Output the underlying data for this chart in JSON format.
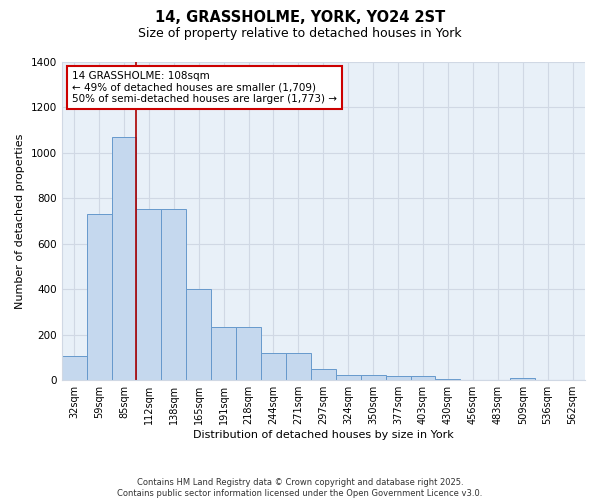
{
  "title_line1": "14, GRASSHOLME, YORK, YO24 2ST",
  "title_line2": "Size of property relative to detached houses in York",
  "xlabel": "Distribution of detached houses by size in York",
  "ylabel": "Number of detached properties",
  "categories": [
    "32sqm",
    "59sqm",
    "85sqm",
    "112sqm",
    "138sqm",
    "165sqm",
    "191sqm",
    "218sqm",
    "244sqm",
    "271sqm",
    "297sqm",
    "324sqm",
    "350sqm",
    "377sqm",
    "403sqm",
    "430sqm",
    "456sqm",
    "483sqm",
    "509sqm",
    "536sqm",
    "562sqm"
  ],
  "values": [
    108,
    730,
    1070,
    750,
    750,
    400,
    235,
    235,
    120,
    120,
    50,
    25,
    25,
    20,
    18,
    5,
    0,
    0,
    10,
    0,
    0
  ],
  "bar_color": "#c5d8ee",
  "bar_edge_color": "#6699cc",
  "grid_color": "#d0d8e4",
  "bg_color": "#e8f0f8",
  "vline_x_index": 2.5,
  "vline_color": "#aa0000",
  "annotation_text": "14 GRASSHOLME: 108sqm\n← 49% of detached houses are smaller (1,709)\n50% of semi-detached houses are larger (1,773) →",
  "annotation_box_color": "#cc0000",
  "ylim": [
    0,
    1400
  ],
  "yticks": [
    0,
    200,
    400,
    600,
    800,
    1000,
    1200,
    1400
  ],
  "footer_text": "Contains HM Land Registry data © Crown copyright and database right 2025.\nContains public sector information licensed under the Open Government Licence v3.0.",
  "title_fontsize": 10.5,
  "subtitle_fontsize": 9,
  "axis_label_fontsize": 8,
  "tick_fontsize": 7,
  "annotation_fontsize": 7.5
}
